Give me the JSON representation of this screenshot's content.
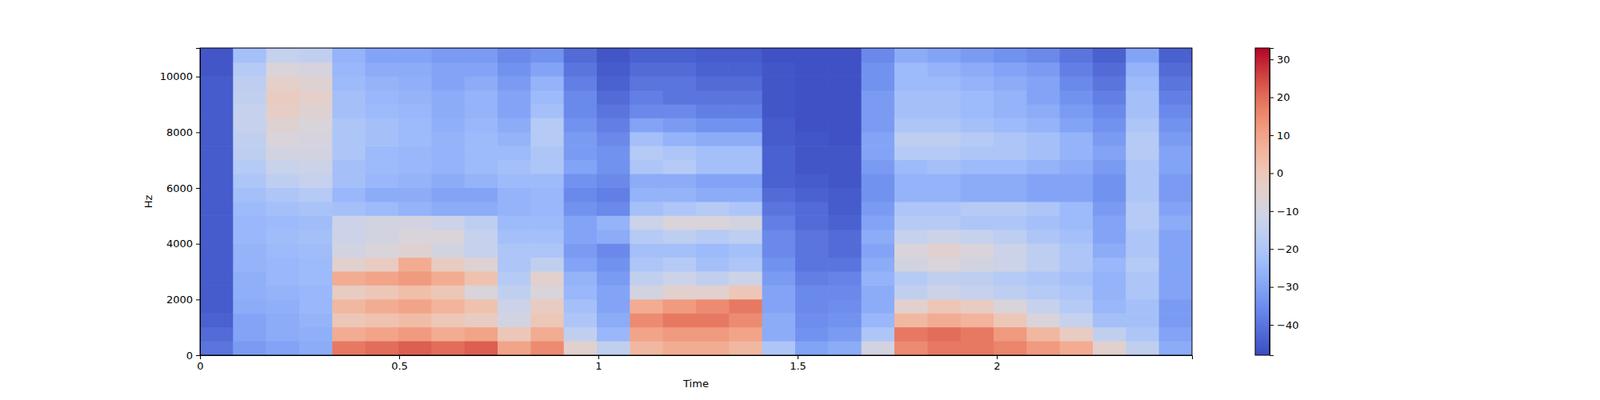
{
  "chart_data": {
    "type": "heatmap",
    "xlabel": "Time",
    "ylabel": "Hz",
    "xlim": [
      0,
      2.49
    ],
    "ylim": [
      0,
      11025
    ],
    "xticks": [
      0,
      0.5,
      1,
      1.5,
      2
    ],
    "yticks": [
      0,
      2000,
      4000,
      6000,
      8000,
      10000
    ],
    "x_edges": [
      0,
      0.083,
      0.166,
      0.249,
      0.332,
      0.415,
      0.498,
      0.581,
      0.664,
      0.747,
      0.83,
      0.913,
      0.996,
      1.079,
      1.162,
      1.245,
      1.328,
      1.411,
      1.494,
      1.577,
      1.66,
      1.743,
      1.826,
      1.909,
      1.992,
      2.075,
      2.158,
      2.241,
      2.324,
      2.407,
      2.49
    ],
    "y_edges": [
      0,
      500,
      1000,
      1500,
      2000,
      2500,
      3000,
      3500,
      4000,
      4500,
      5000,
      5500,
      6000,
      6500,
      7000,
      7500,
      8000,
      8500,
      9000,
      9500,
      10000,
      10500,
      11000,
      11025
    ],
    "cells": [
      [
        -40,
        -42,
        -44,
        -45,
        -45,
        -45,
        -45,
        -45,
        -45,
        -45,
        -45,
        -45,
        -45,
        -45,
        -45,
        -45,
        -45,
        -45,
        -45,
        -45,
        -46,
        -46,
        -46
      ],
      [
        -32,
        -30,
        -30,
        -28,
        -27,
        -27,
        -26,
        -26,
        -25,
        -25,
        -24,
        -22,
        -20,
        -18,
        -16,
        -15,
        -14,
        -14,
        -15,
        -16,
        -18,
        -22,
        -30
      ],
      [
        -30,
        -28,
        -28,
        -27,
        -26,
        -25,
        -25,
        -24,
        -23,
        -24,
        -22,
        -20,
        -16,
        -13,
        -10,
        -8,
        -6,
        -3,
        -2,
        -4,
        -8,
        -14,
        -25
      ],
      [
        -28,
        -27,
        -26,
        -25,
        -25,
        -24,
        -24,
        -23,
        -22,
        -23,
        -21,
        -18,
        -14,
        -12,
        -10,
        -9,
        -8,
        -6,
        -4,
        -6,
        -9,
        -15,
        -25
      ],
      [
        18,
        8,
        0,
        5,
        -2,
        8,
        -5,
        -10,
        -12,
        -12,
        -22,
        -25,
        -22,
        -22,
        -20,
        -20,
        -20,
        -22,
        -22,
        -24,
        -25,
        -26,
        -35
      ],
      [
        20,
        10,
        2,
        8,
        0,
        10,
        -2,
        -8,
        -10,
        -10,
        -24,
        -28,
        -25,
        -24,
        -24,
        -22,
        -22,
        -24,
        -25,
        -26,
        -28,
        -30,
        -38
      ],
      [
        22,
        12,
        4,
        10,
        3,
        12,
        8,
        -6,
        -8,
        -10,
        -26,
        -28,
        -26,
        -25,
        -25,
        -24,
        -24,
        -25,
        -26,
        -27,
        -28,
        -30,
        -38
      ],
      [
        20,
        8,
        0,
        6,
        0,
        8,
        -2,
        -10,
        -8,
        -12,
        -28,
        -30,
        -28,
        -26,
        -26,
        -26,
        -27,
        -28,
        -28,
        -30,
        -30,
        -32,
        -40
      ],
      [
        22,
        10,
        -2,
        2,
        -8,
        2,
        -6,
        -14,
        -14,
        -16,
        -28,
        -30,
        -26,
        -24,
        -24,
        -24,
        -25,
        -26,
        -26,
        -28,
        -30,
        -32,
        -40
      ],
      [
        10,
        0,
        -10,
        -12,
        -15,
        -18,
        -20,
        -20,
        -22,
        -24,
        -26,
        -26,
        -24,
        -22,
        -24,
        -26,
        -28,
        -30,
        -30,
        -32,
        -34,
        -36,
        -42
      ],
      [
        15,
        8,
        0,
        -2,
        -8,
        -5,
        -15,
        -20,
        -22,
        -24,
        -25,
        -25,
        -24,
        -20,
        -20,
        -18,
        -18,
        -22,
        -24,
        -26,
        -30,
        -34,
        -42
      ],
      [
        -5,
        -15,
        -20,
        -22,
        -25,
        -26,
        -30,
        -32,
        -30,
        -30,
        -34,
        -36,
        -34,
        -30,
        -32,
        -32,
        -34,
        -36,
        -36,
        -38,
        -40,
        -42,
        -45
      ],
      [
        -15,
        -25,
        -28,
        -30,
        -30,
        -32,
        -34,
        -36,
        -28,
        -26,
        -36,
        -38,
        -36,
        -34,
        -34,
        -36,
        -38,
        -40,
        -42,
        -44,
        -45,
        -46,
        -46
      ],
      [
        5,
        10,
        15,
        8,
        -10,
        -15,
        -20,
        -22,
        -18,
        -12,
        -22,
        -26,
        -28,
        -20,
        -18,
        -22,
        -30,
        -36,
        -38,
        -40,
        -42,
        -44,
        -46
      ],
      [
        8,
        12,
        18,
        12,
        -5,
        -12,
        -18,
        -22,
        -16,
        -8,
        -20,
        -26,
        -28,
        -18,
        -20,
        -26,
        -32,
        -36,
        -40,
        -40,
        -42,
        -44,
        -46
      ],
      [
        8,
        12,
        18,
        15,
        -5,
        -15,
        -22,
        -24,
        -18,
        -8,
        -18,
        -28,
        -30,
        -22,
        -22,
        -28,
        -34,
        -38,
        -40,
        -42,
        -44,
        -45,
        -46
      ],
      [
        5,
        10,
        15,
        18,
        0,
        -12,
        -20,
        -22,
        -16,
        -10,
        -20,
        -28,
        -30,
        -22,
        -22,
        -28,
        -34,
        -38,
        -40,
        -42,
        -44,
        -45,
        -46
      ],
      [
        -20,
        -28,
        -28,
        -30,
        -30,
        -32,
        -34,
        -36,
        -36,
        -38,
        -40,
        -42,
        -44,
        -44,
        -44,
        -45,
        -45,
        -46,
        -46,
        -46,
        -46,
        -47,
        -47
      ],
      [
        -30,
        -34,
        -35,
        -36,
        -36,
        -38,
        -40,
        -40,
        -40,
        -42,
        -42,
        -44,
        -45,
        -46,
        -46,
        -46,
        -47,
        -47,
        -47,
        -47,
        -47,
        -47,
        -47
      ],
      [
        -28,
        -32,
        -34,
        -35,
        -36,
        -37,
        -40,
        -42,
        -42,
        -44,
        -45,
        -45,
        -46,
        -46,
        -46,
        -47,
        -47,
        -47,
        -47,
        -47,
        -47,
        -47,
        -47
      ],
      [
        -10,
        -20,
        -25,
        -28,
        -28,
        -26,
        -28,
        -30,
        -28,
        -30,
        -32,
        -34,
        -34,
        -32,
        -30,
        -30,
        -32,
        -32,
        -32,
        -34,
        -34,
        -36,
        -40
      ],
      [
        15,
        18,
        5,
        -5,
        -15,
        -18,
        -10,
        -8,
        -14,
        -18,
        -20,
        -26,
        -26,
        -24,
        -18,
        -16,
        -20,
        -22,
        -22,
        -24,
        -24,
        -28,
        -38
      ],
      [
        18,
        20,
        8,
        0,
        -12,
        -15,
        -8,
        -5,
        -12,
        -18,
        -20,
        -26,
        -26,
        -22,
        -18,
        -16,
        -20,
        -22,
        -22,
        -24,
        -26,
        -30,
        -40
      ],
      [
        18,
        18,
        6,
        -2,
        -14,
        -16,
        -10,
        -8,
        -14,
        -20,
        -18,
        -28,
        -28,
        -24,
        -20,
        -18,
        -22,
        -24,
        -24,
        -26,
        -28,
        -32,
        -40
      ],
      [
        16,
        12,
        0,
        -8,
        -16,
        -18,
        -12,
        -12,
        -16,
        -20,
        -18,
        -28,
        -28,
        -24,
        -20,
        -20,
        -24,
        -26,
        -26,
        -28,
        -30,
        -34,
        -42
      ],
      [
        12,
        5,
        -8,
        -14,
        -18,
        -20,
        -16,
        -16,
        -20,
        -22,
        -20,
        -30,
        -30,
        -26,
        -22,
        -22,
        -26,
        -28,
        -30,
        -30,
        -32,
        -36,
        -44
      ],
      [
        8,
        -2,
        -14,
        -18,
        -20,
        -22,
        -20,
        -20,
        -22,
        -24,
        -24,
        -30,
        -30,
        -28,
        -26,
        -26,
        -30,
        -32,
        -34,
        -36,
        -38,
        -40,
        -45
      ],
      [
        -5,
        -15,
        -22,
        -25,
        -26,
        -26,
        -25,
        -28,
        -30,
        -30,
        -32,
        -34,
        -34,
        -32,
        -30,
        -32,
        -34,
        -36,
        -38,
        -40,
        -42,
        -44,
        -46
      ],
      [
        -15,
        -20,
        -22,
        -22,
        -20,
        -20,
        -18,
        -20,
        -20,
        -18,
        -18,
        -20,
        -20,
        -20,
        -18,
        -18,
        -20,
        -22,
        -22,
        -24,
        -26,
        -30,
        -40
      ],
      [
        -28,
        -30,
        -32,
        -32,
        -30,
        -30,
        -30,
        -30,
        -30,
        -28,
        -30,
        -32,
        -32,
        -30,
        -30,
        -32,
        -34,
        -36,
        -38,
        -40,
        -42,
        -44,
        -46
      ]
    ],
    "colorbar": {
      "range": [
        -48,
        33
      ],
      "ticks": [
        {
          "value": -40,
          "label": "−40"
        },
        {
          "value": -30,
          "label": "−30"
        },
        {
          "value": -20,
          "label": "−20"
        },
        {
          "value": -10,
          "label": "−10"
        },
        0,
        10,
        20,
        30
      ]
    }
  }
}
